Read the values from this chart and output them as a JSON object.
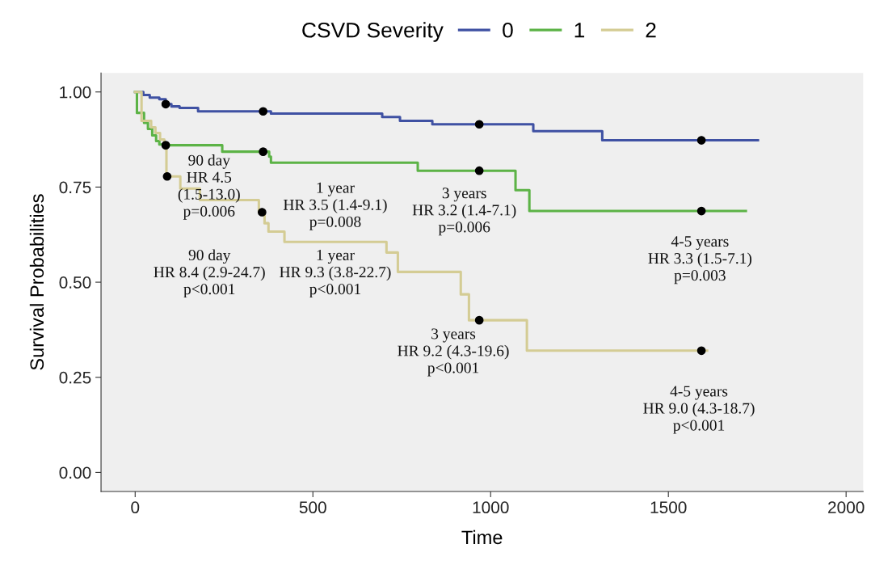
{
  "chart_data": {
    "type": "step",
    "xlabel": "Time",
    "ylabel": "Survival Probabilities",
    "legend_title": "CSVD Severity",
    "legend": "top",
    "xlim": [
      -96,
      2048
    ],
    "xticks": [
      0,
      500,
      1000,
      1500,
      2000
    ],
    "ylim": [
      -0.05,
      1.05
    ],
    "yticks": [
      {
        "value": 0,
        "label": "0.00"
      },
      {
        "value": 0.25,
        "label": "0.25"
      },
      {
        "value": 0.5,
        "label": "0.50"
      },
      {
        "value": 0.75,
        "label": "0.75"
      },
      {
        "value": 1,
        "label": "1.00"
      }
    ],
    "grid": false,
    "series": [
      {
        "name": "0",
        "color": "#3f51a3",
        "x": [
          0,
          23,
          41,
          68,
          86,
          102,
          125,
          177,
          382,
          695,
          745,
          836,
          1120,
          1314,
          1752
        ],
        "values": [
          1.0,
          0.992,
          0.985,
          0.981,
          0.968,
          0.962,
          0.958,
          0.949,
          0.943,
          0.934,
          0.924,
          0.915,
          0.897,
          0.873,
          0.873
        ]
      },
      {
        "name": "1",
        "color": "#5cb346",
        "x": [
          0,
          5,
          25,
          36,
          48,
          59,
          68,
          86,
          245,
          377,
          382,
          795,
          1070,
          1109,
          1718
        ],
        "values": [
          1.0,
          0.945,
          0.919,
          0.903,
          0.886,
          0.871,
          0.862,
          0.86,
          0.843,
          0.83,
          0.814,
          0.793,
          0.742,
          0.687,
          0.687
        ]
      },
      {
        "name": "2",
        "color": "#d4cc94",
        "x": [
          0,
          18,
          45,
          57,
          70,
          82,
          86,
          88,
          127,
          182,
          348,
          364,
          375,
          420,
          707,
          739,
          916,
          939,
          1102,
          1609
        ],
        "values": [
          1.0,
          0.924,
          0.907,
          0.892,
          0.875,
          0.864,
          0.85,
          0.778,
          0.746,
          0.716,
          0.684,
          0.655,
          0.633,
          0.606,
          0.578,
          0.527,
          0.468,
          0.4,
          0.32,
          0.32
        ]
      },
      {
        "type": "scatter",
        "color": "#000000",
        "marker": "circle",
        "x": [
          86,
          360,
          968,
          1593,
          86,
          360,
          968,
          1593,
          90,
          357,
          968,
          1593
        ],
        "values": [
          0.968,
          0.949,
          0.915,
          0.873,
          0.86,
          0.843,
          0.793,
          0.687,
          0.778,
          0.684,
          0.4,
          0.32
        ]
      }
    ],
    "annotations": [
      "90 day\nHR 4.5\n(1.5-13.0)\np=0.006",
      "1 year\nHR 3.5 (1.4-9.1)\np=0.008",
      "3 years\nHR 3.2 (1.4-7.1)\np=0.006",
      "4-5 years\nHR 3.3 (1.5-7.1)\np=0.003",
      "90 day\nHR 8.4 (2.9-24.7)\np<0.001",
      "1 year\nHR 9.3 (3.8-22.7)\np<0.001",
      "3 years\nHR 9.2 (4.3-19.6)\np<0.001",
      "4-5 years\nHR 9.0 (4.3-18.7)\np<0.001"
    ]
  }
}
